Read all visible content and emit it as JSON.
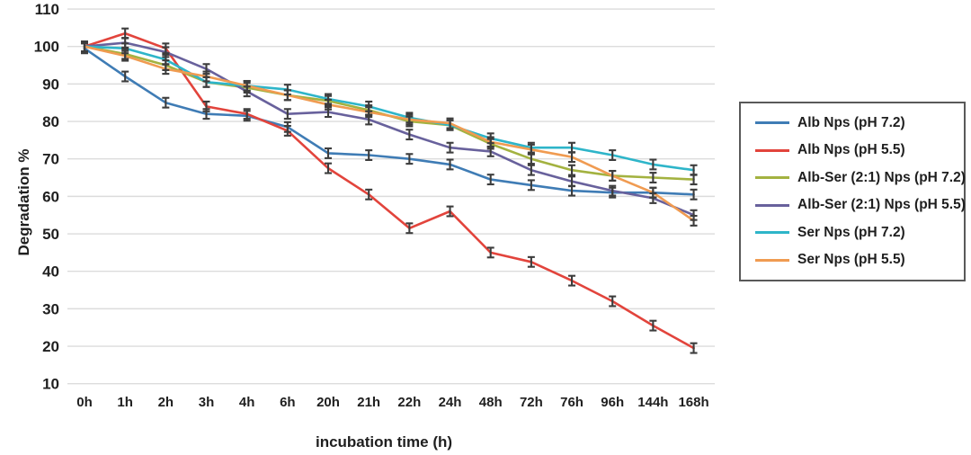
{
  "chart_data": {
    "type": "line",
    "title": "",
    "xlabel": "incubation time (h)",
    "ylabel": "Degradation %",
    "ylim": [
      10,
      110
    ],
    "ytick_step": 10,
    "grid": "horizontal",
    "legend_position": "right-box",
    "error_bar_value": 1.3,
    "categories": [
      "0h",
      "1h",
      "2h",
      "3h",
      "4h",
      "6h",
      "20h",
      "21h",
      "22h",
      "24h",
      "48h",
      "72h",
      "76h",
      "96h",
      "144h",
      "168h"
    ],
    "series": [
      {
        "name": "Alb Nps (pH 7.2)",
        "color": "#3f7cb5",
        "values": [
          99.5,
          92,
          85,
          82,
          81.5,
          78.5,
          71.5,
          71,
          70,
          68.5,
          64.5,
          63,
          61.5,
          61,
          61,
          60.5
        ]
      },
      {
        "name": "Alb Nps (pH 5.5)",
        "color": "#e2443c",
        "values": [
          100,
          103.5,
          99.5,
          84,
          82,
          77.5,
          67.5,
          60.5,
          51.5,
          56,
          45,
          42.5,
          37.5,
          32,
          25.5,
          19.5
        ]
      },
      {
        "name": "Alb-Ser (2:1) Nps (pH 7.2)",
        "color": "#a3b240",
        "values": [
          100,
          98,
          95,
          90.5,
          89,
          87,
          85.5,
          83,
          80,
          79,
          74,
          70,
          67,
          65.5,
          65,
          64.5
        ]
      },
      {
        "name": "Alb-Ser (2:1) Nps (pH 5.5)",
        "color": "#68619c",
        "values": [
          100,
          101,
          98.5,
          94,
          88,
          82,
          82.5,
          80.5,
          76.5,
          73,
          72,
          67,
          64,
          61.5,
          59.5,
          55
        ]
      },
      {
        "name": "Ser Nps (pH 7.2)",
        "color": "#2eb5c9",
        "values": [
          100,
          99.5,
          96.5,
          90.5,
          89.5,
          88.5,
          86,
          84,
          81,
          79,
          75.5,
          73,
          73,
          71,
          68.5,
          67
        ]
      },
      {
        "name": "Ser Nps (pH 5.5)",
        "color": "#f09b51",
        "values": [
          100,
          97.5,
          94,
          92,
          89.5,
          87,
          84.5,
          82.5,
          80.5,
          79.5,
          74.5,
          72.5,
          70.5,
          65.5,
          61,
          53.5
        ]
      }
    ]
  },
  "colors": {
    "background": "#ffffff",
    "gridline": "#dcdcdc",
    "error_bar": "#3d3d3d",
    "axis_text": "#1f1f1f",
    "legend_border": "#595959"
  }
}
